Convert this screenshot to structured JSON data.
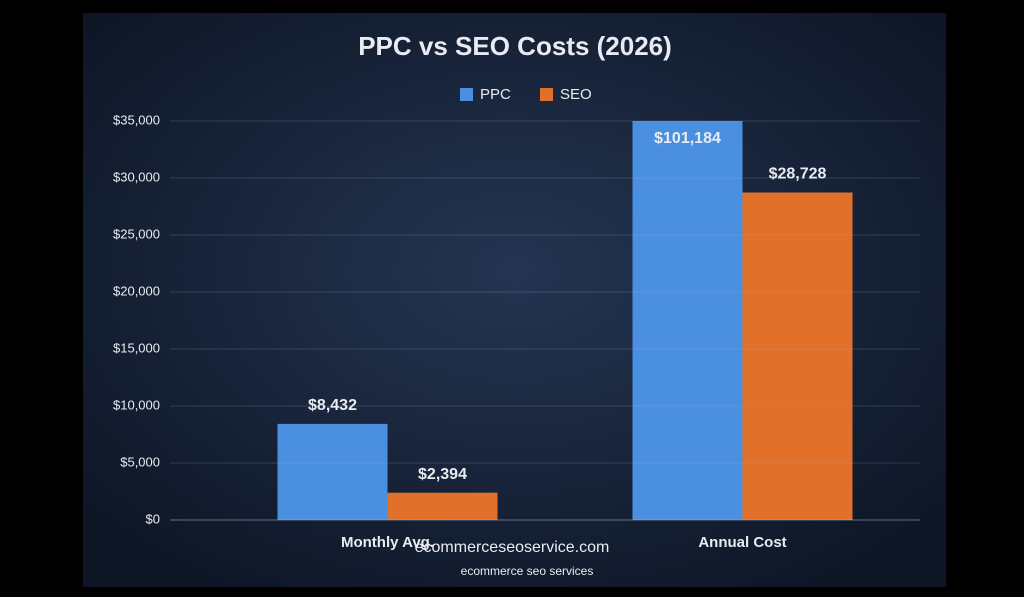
{
  "chart_data": {
    "type": "bar",
    "title": "PPC vs SEO Costs (2026)",
    "categories": [
      "Monthly Avg.",
      "Annual Cost"
    ],
    "series": [
      {
        "name": "PPC",
        "color": "#4a8fe0",
        "values": [
          8432,
          101184
        ],
        "value_labels": [
          "$8,432",
          "$101,184"
        ]
      },
      {
        "name": "SEO",
        "color": "#e0702a",
        "values": [
          2394,
          28728
        ],
        "value_labels": [
          "$2,394",
          "$28,728"
        ]
      }
    ],
    "ylim": [
      0,
      35000
    ],
    "yticks": [
      {
        "value": 0,
        "label": "$0"
      },
      {
        "value": 5000,
        "label": "$5,000"
      },
      {
        "value": 10000,
        "label": "$10,000"
      },
      {
        "value": 15000,
        "label": "$15,000"
      },
      {
        "value": 20000,
        "label": "$20,000"
      },
      {
        "value": 25000,
        "label": "$25,000"
      },
      {
        "value": 30000,
        "label": "$30,000"
      },
      {
        "value": 35000,
        "label": "$35,000"
      }
    ],
    "grid": true,
    "legend": "top",
    "annotations": [
      "ecommerceseoservice.com",
      "ecommerce seo services"
    ]
  }
}
